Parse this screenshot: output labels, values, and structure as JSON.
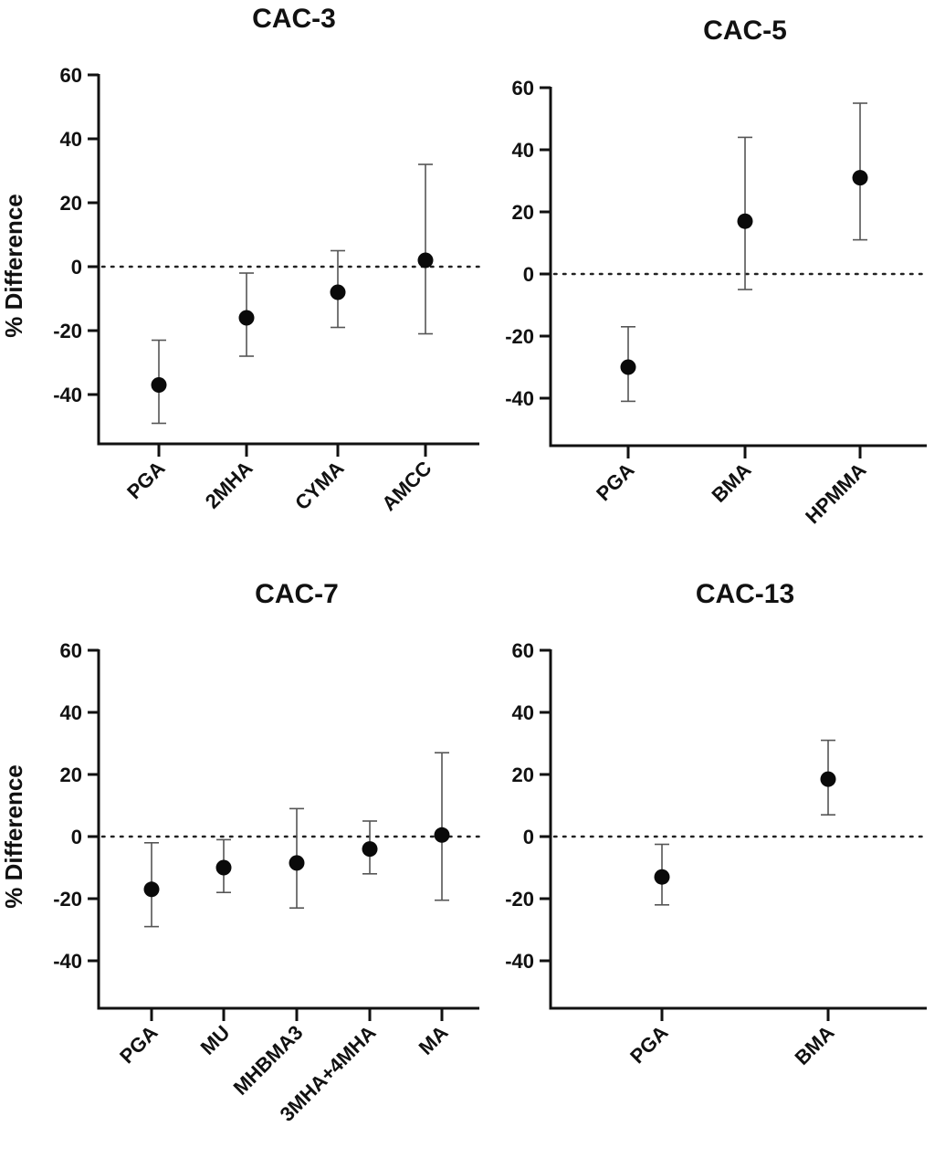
{
  "chart_data": [
    {
      "type": "scatter",
      "title": "CAC-3",
      "ylabel": "% Difference",
      "ylim": [
        -55,
        60
      ],
      "yticks": [
        60,
        40,
        20,
        0,
        -20,
        -40
      ],
      "reference_line": 0,
      "categories": [
        "PGA",
        "2MHA",
        "CYMA",
        "AMCC"
      ],
      "values": [
        -37,
        -16,
        -8,
        2
      ],
      "error_low": [
        -49,
        -28,
        -19,
        -21
      ],
      "error_high": [
        -23,
        -2,
        5,
        32
      ]
    },
    {
      "type": "scatter",
      "title": "CAC-5",
      "ylabel": "",
      "ylim": [
        -55,
        60
      ],
      "yticks": [
        60,
        40,
        20,
        0,
        -20,
        -40
      ],
      "reference_line": 0,
      "categories": [
        "PGA",
        "BMA",
        "HPMMA"
      ],
      "values": [
        -30,
        17,
        31
      ],
      "error_low": [
        -41,
        -5,
        11
      ],
      "error_high": [
        -17,
        44,
        55
      ]
    },
    {
      "type": "scatter",
      "title": "CAC-7",
      "ylabel": "% Difference",
      "ylim": [
        -55,
        60
      ],
      "yticks": [
        60,
        40,
        20,
        0,
        -20,
        -40
      ],
      "reference_line": 0,
      "categories": [
        "PGA",
        "MU",
        "MHBMA3",
        "3MHA+4MHA",
        "MA"
      ],
      "values": [
        -17,
        -10,
        -8.5,
        -4,
        0.5
      ],
      "error_low": [
        -29,
        -18,
        -23,
        -12,
        -20.5
      ],
      "error_high": [
        -2,
        -1,
        9,
        5,
        27
      ]
    },
    {
      "type": "scatter",
      "title": "CAC-13",
      "ylabel": "",
      "ylim": [
        -55,
        60
      ],
      "yticks": [
        60,
        40,
        20,
        0,
        -20,
        -40
      ],
      "reference_line": 0,
      "categories": [
        "PGA",
        "BMA"
      ],
      "values": [
        -13,
        18.5
      ],
      "error_low": [
        -22,
        7
      ],
      "error_high": [
        -2.5,
        31
      ]
    }
  ]
}
